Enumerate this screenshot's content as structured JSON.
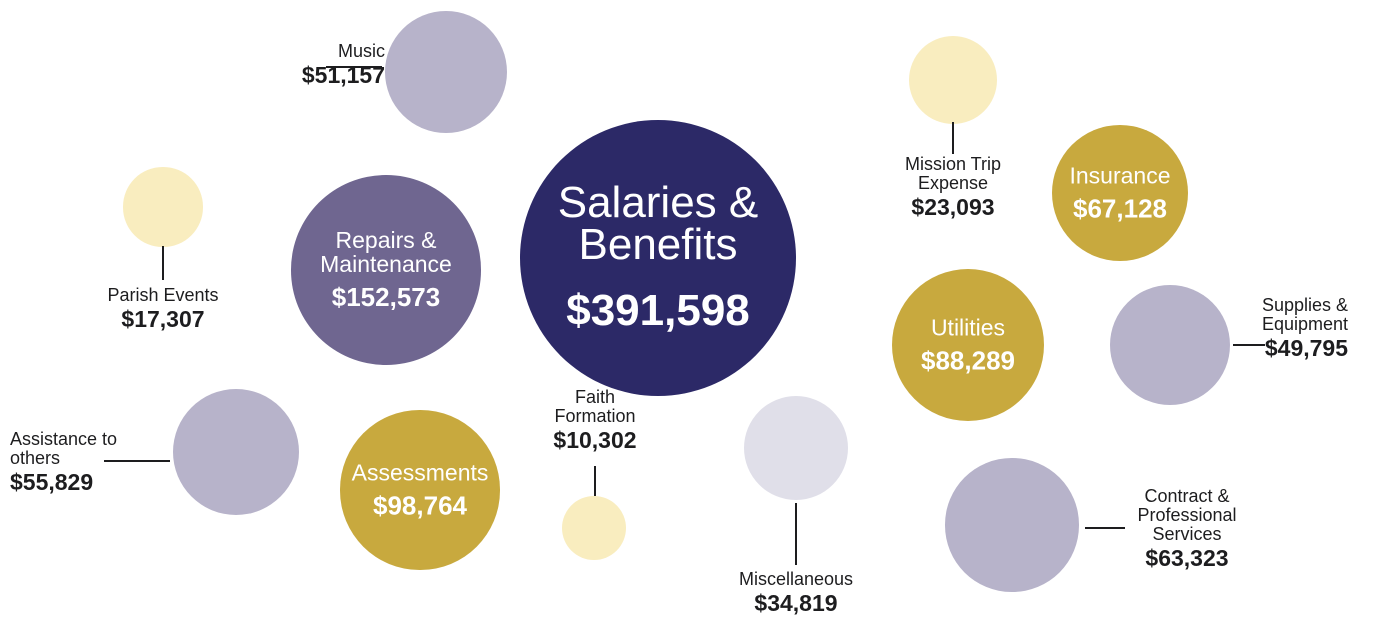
{
  "chart_data": {
    "type": "bubble",
    "categories": [
      "Salaries & Benefits",
      "Repairs & Maintenance",
      "Music",
      "Parish Events",
      "Assistance to others",
      "Assessments",
      "Faith Formation",
      "Miscellaneous",
      "Mission Trip Expense",
      "Insurance",
      "Utilities",
      "Supplies & Equipment",
      "Contract & Professional Services"
    ],
    "values": [
      391598,
      152573,
      51157,
      17307,
      55829,
      98764,
      10302,
      34819,
      23093,
      67128,
      88289,
      49795,
      63323
    ],
    "value_labels": [
      "$391,598",
      "$152,573",
      "$51,157",
      "$17,307",
      "$55,829",
      "$98,764",
      "$10,302",
      "$34,819",
      "$23,093",
      "$67,128",
      "$88,289",
      "$49,795",
      "$63,323"
    ],
    "colors": [
      "#2c2967",
      "#6f6690",
      "#b7b3ca",
      "#f9edbf",
      "#b7b3ca",
      "#c8a93e",
      "#f9edbf",
      "#e0dfe9",
      "#f9edbf",
      "#c8a93e",
      "#c8a93e",
      "#b7b3ca",
      "#b7b3ca"
    ]
  }
}
